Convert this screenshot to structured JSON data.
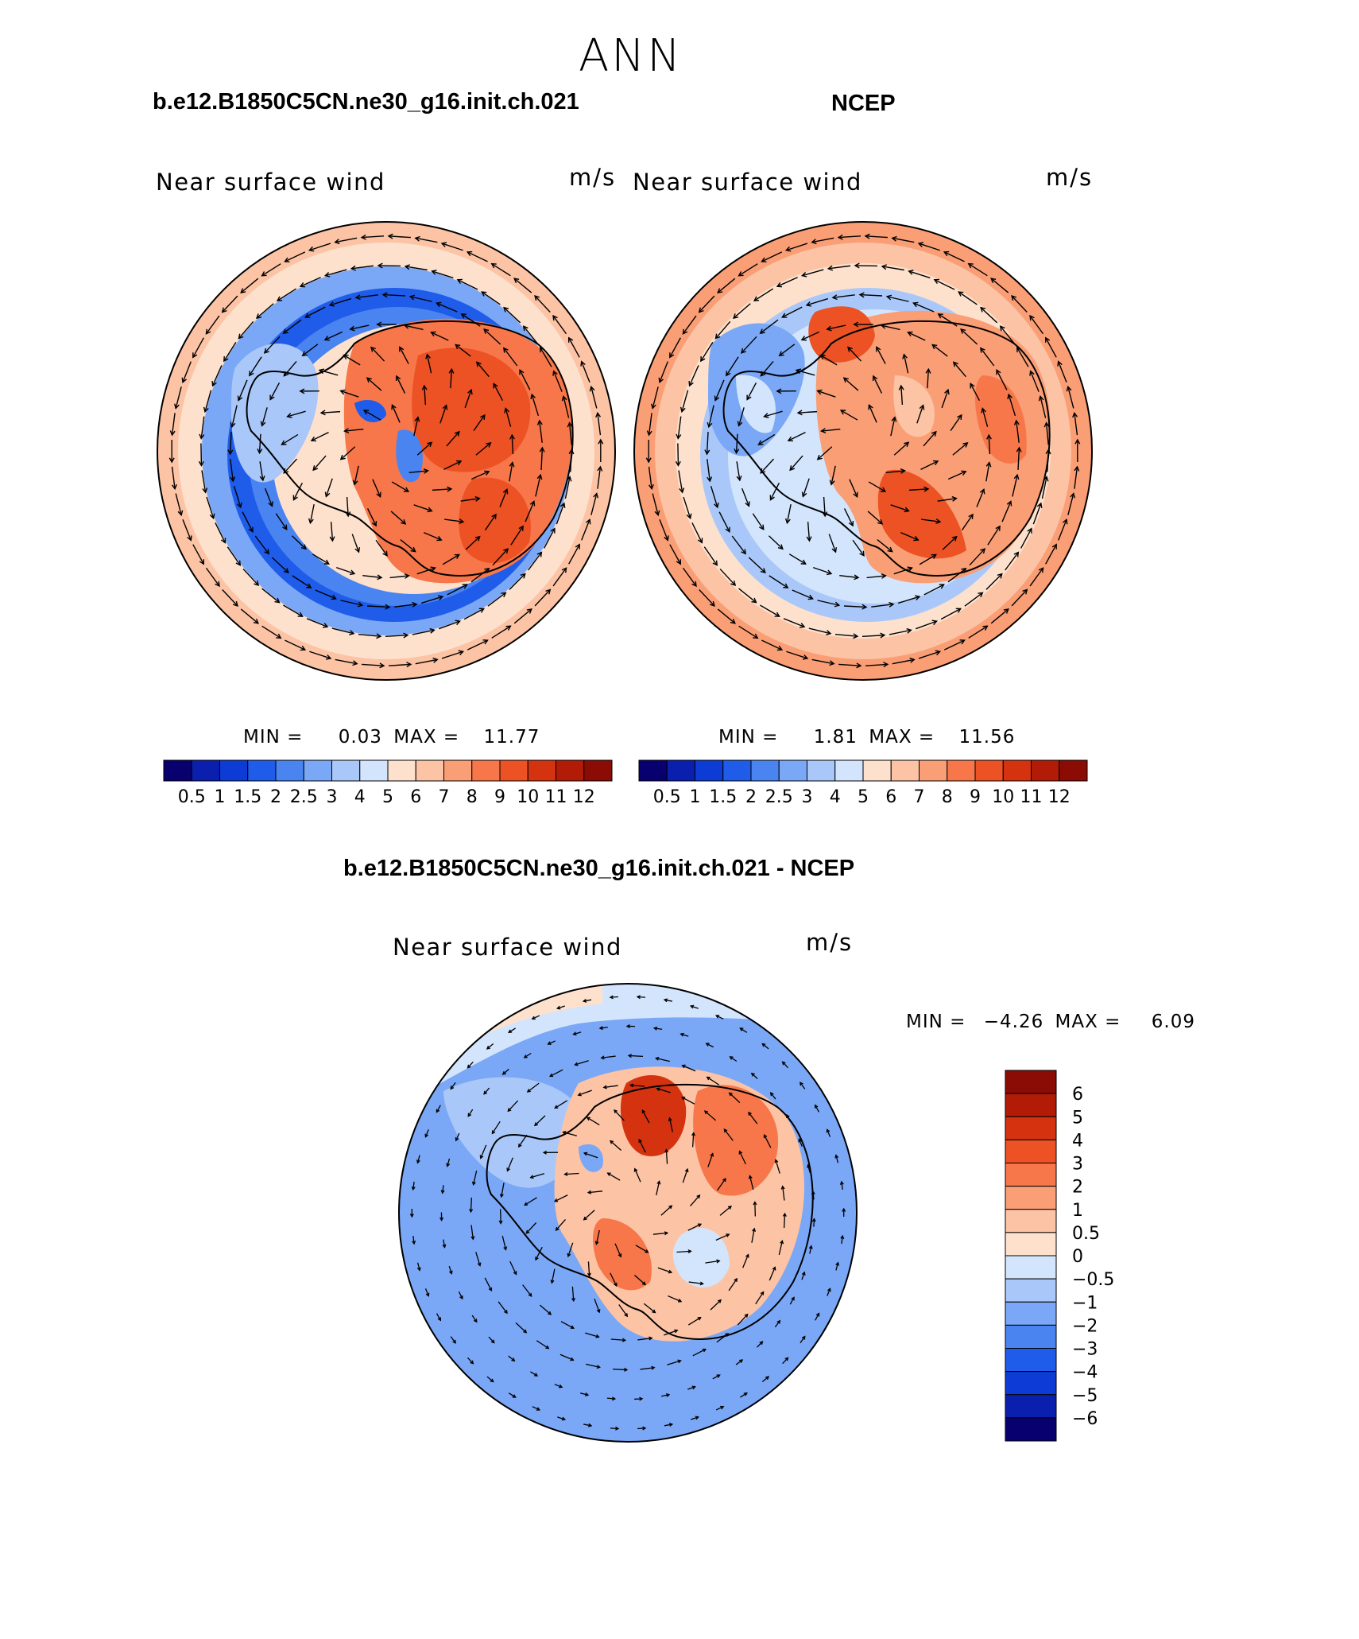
{
  "season": "ANN",
  "panels": [
    {
      "title": "b.e12.B1850C5CN.ne30_g16.init.ch.021",
      "variable": "Near surface wind",
      "units": "m/s",
      "min_label": "MIN =",
      "min_value": "0.03",
      "max_label": "MAX =",
      "max_value": "11.77"
    },
    {
      "title": "NCEP",
      "variable": "Near surface wind",
      "units": "m/s",
      "min_label": "MIN =",
      "min_value": "1.81",
      "max_label": "MAX =",
      "max_value": "11.56"
    },
    {
      "title": "b.e12.B1850C5CN.ne30_g16.init.ch.021 - NCEP",
      "variable": "Near surface wind",
      "units": "m/s",
      "min_label": "MIN =",
      "min_value": "−4.26",
      "max_label": "MAX =",
      "max_value": "6.09"
    }
  ],
  "abs_colorbar": {
    "labels": [
      "0.5",
      "1",
      "1.5",
      "2",
      "2.5",
      "3",
      "4",
      "5",
      "6",
      "7",
      "8",
      "9",
      "10",
      "11",
      "12"
    ],
    "colors": [
      "#08006e",
      "#0a1fae",
      "#0d3bd6",
      "#1f5ce9",
      "#4a84f0",
      "#7aa8f6",
      "#a9c8f9",
      "#d3e5fc",
      "#fde1cd",
      "#fcc3a5",
      "#fa9e75",
      "#f7774a",
      "#ec5224",
      "#d53310",
      "#b21c07",
      "#8b0c04"
    ]
  },
  "diff_colorbar": {
    "labels": [
      "6",
      "5",
      "4",
      "3",
      "2",
      "1",
      "0.5",
      "0",
      "−0.5",
      "−1",
      "−2",
      "−3",
      "−4",
      "−5",
      "−6"
    ],
    "colors": [
      "#8b0c04",
      "#b21c07",
      "#d53310",
      "#ec5224",
      "#f7774a",
      "#fa9e75",
      "#fcc3a5",
      "#fde1cd",
      "#d3e5fc",
      "#a9c8f9",
      "#7aa8f6",
      "#4a84f0",
      "#1f5ce9",
      "#0d3bd6",
      "#0a1fae",
      "#08006e"
    ]
  }
}
